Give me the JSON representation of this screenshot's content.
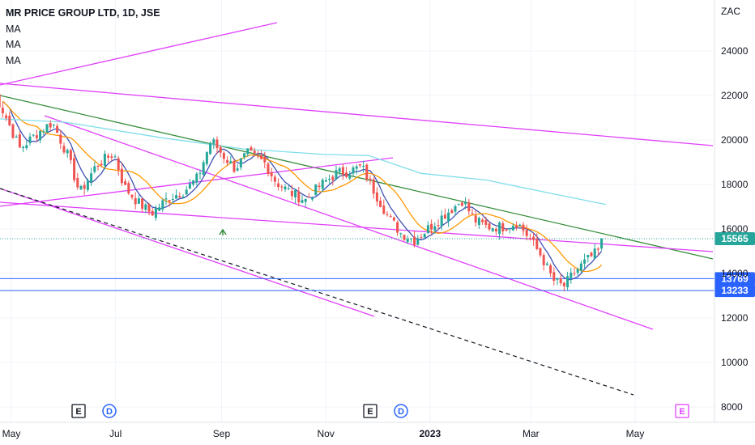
{
  "chart_data": {
    "type": "candlestick",
    "title": "MR PRICE GROUP LTD, 1D, JSE",
    "indicators": [
      "MA",
      "MA",
      "MA"
    ],
    "currency": "ZAC",
    "y_ticks": [
      "24000",
      "22000",
      "20000",
      "18000",
      "16000",
      "14000",
      "12000",
      "10000",
      "8000"
    ],
    "ylim": [
      7200,
      25500
    ],
    "x_ticks": [
      {
        "label": "May",
        "bold": false
      },
      {
        "label": "Jul",
        "bold": false
      },
      {
        "label": "Sep",
        "bold": false
      },
      {
        "label": "Nov",
        "bold": false
      },
      {
        "label": "2023",
        "bold": true
      },
      {
        "label": "Mar",
        "bold": false
      },
      {
        "label": "May",
        "bold": false
      }
    ],
    "last_price": {
      "value": 15565,
      "label": "15565",
      "color": "#26a69a"
    },
    "horizontal_levels": [
      {
        "value": 13769,
        "label": "13769",
        "color": "#2962ff"
      },
      {
        "value": 13233,
        "label": "13233",
        "color": "#2962ff"
      }
    ],
    "events": [
      {
        "type": "E",
        "kind": "earnings",
        "color": "#131722"
      },
      {
        "type": "D",
        "kind": "dividend",
        "color": "#2962ff"
      },
      {
        "type": "E",
        "kind": "earnings",
        "color": "#131722"
      },
      {
        "type": "D",
        "kind": "dividend",
        "color": "#2962ff"
      },
      {
        "type": "E",
        "kind": "earnings-upcoming",
        "color": "#e040fb"
      }
    ],
    "colors": {
      "up": "#26a69a",
      "down": "#ef5350",
      "trendline": "#e040fb",
      "ma_fast": "#3f51b5",
      "ma_mid": "#ff9800",
      "ma_slow": "#80deea",
      "green_line": "#388e3c"
    },
    "price_path": [
      [
        "2022-04-20",
        22300
      ],
      [
        "2022-04-28",
        21000
      ],
      [
        "2022-05-06",
        19600
      ],
      [
        "2022-05-16",
        20300
      ],
      [
        "2022-05-25",
        20800
      ],
      [
        "2022-06-03",
        19300
      ],
      [
        "2022-06-10",
        17600
      ],
      [
        "2022-06-20",
        18900
      ],
      [
        "2022-06-30",
        19400
      ],
      [
        "2022-07-06",
        17900
      ],
      [
        "2022-07-14",
        17200
      ],
      [
        "2022-07-22",
        16700
      ],
      [
        "2022-08-01",
        17400
      ],
      [
        "2022-08-10",
        17700
      ],
      [
        "2022-08-18",
        18300
      ],
      [
        "2022-08-26",
        20000
      ],
      [
        "2022-09-02",
        19300
      ],
      [
        "2022-09-09",
        18700
      ],
      [
        "2022-09-16",
        19400
      ],
      [
        "2022-09-26",
        19000
      ],
      [
        "2022-10-03",
        18100
      ],
      [
        "2022-10-12",
        17600
      ],
      [
        "2022-10-20",
        17300
      ],
      [
        "2022-10-28",
        17900
      ],
      [
        "2022-11-07",
        18500
      ],
      [
        "2022-11-15",
        18600
      ],
      [
        "2022-11-22",
        18800
      ],
      [
        "2022-11-30",
        17600
      ],
      [
        "2022-12-08",
        16500
      ],
      [
        "2022-12-15",
        15800
      ],
      [
        "2022-12-23",
        15500
      ],
      [
        "2023-01-04",
        16300
      ],
      [
        "2023-01-12",
        16800
      ],
      [
        "2023-01-20",
        17300
      ],
      [
        "2023-01-27",
        16400
      ],
      [
        "2023-02-03",
        16100
      ],
      [
        "2023-02-13",
        16100
      ],
      [
        "2023-02-21",
        16300
      ],
      [
        "2023-02-28",
        15600
      ],
      [
        "2023-03-07",
        14800
      ],
      [
        "2023-03-14",
        13700
      ],
      [
        "2023-03-20",
        13400
      ],
      [
        "2023-03-27",
        14100
      ],
      [
        "2023-04-03",
        14600
      ],
      [
        "2023-04-11",
        15100
      ],
      [
        "2023-04-13",
        15565
      ]
    ]
  }
}
